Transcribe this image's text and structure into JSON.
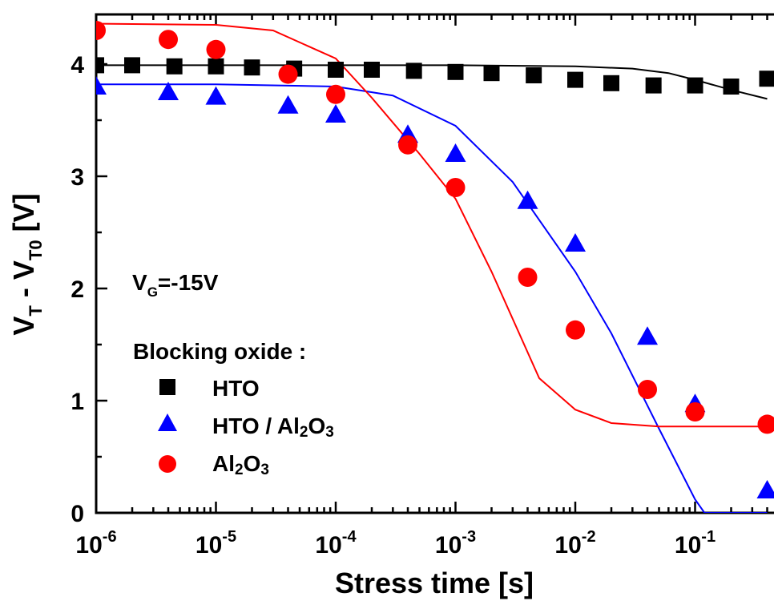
{
  "chart_data": {
    "type": "scatter",
    "x_scale": "log",
    "xlim": [
      1e-06,
      0.4
    ],
    "ylim": [
      0,
      4.4
    ],
    "xlabel": "Stress time [s]",
    "ylabel": {
      "main1": "V",
      "sub1": "T",
      "mid": " - V",
      "sub2": "T0",
      "unit": " [V]"
    },
    "x_ticks": [
      {
        "base": "10",
        "exp": "-6",
        "value": 1e-06
      },
      {
        "base": "10",
        "exp": "-5",
        "value": 1e-05
      },
      {
        "base": "10",
        "exp": "-4",
        "value": 0.0001
      },
      {
        "base": "10",
        "exp": "-3",
        "value": 0.001
      },
      {
        "base": "10",
        "exp": "-2",
        "value": 0.01
      },
      {
        "base": "10",
        "exp": "-1",
        "value": 0.1
      }
    ],
    "y_ticks": [
      "0",
      "1",
      "2",
      "3",
      "4"
    ],
    "annotation": {
      "main": "V",
      "sub": "G",
      "rest": "=-15V"
    },
    "legend_title": "Blocking oxide :",
    "grid": false,
    "series": [
      {
        "name": "HTO",
        "marker": "square",
        "color": "#000000",
        "x": [
          1e-06,
          2e-06,
          4.5e-06,
          1e-05,
          2e-05,
          4.5e-05,
          0.0001,
          0.0002,
          0.00045,
          0.001,
          0.002,
          0.0045,
          0.01,
          0.02,
          0.045,
          0.1,
          0.2,
          0.4
        ],
        "y": [
          3.99,
          3.99,
          3.98,
          3.98,
          3.97,
          3.96,
          3.95,
          3.95,
          3.94,
          3.93,
          3.92,
          3.9,
          3.86,
          3.83,
          3.81,
          3.81,
          3.8,
          3.87
        ]
      },
      {
        "name": "HTO / Al2O3",
        "marker": "triangle",
        "color": "#0000ff",
        "x": [
          1e-06,
          4e-06,
          1e-05,
          4e-05,
          0.0001,
          0.0004,
          0.001,
          0.004,
          0.01,
          0.04,
          0.1,
          0.4
        ],
        "y": [
          3.8,
          3.75,
          3.71,
          3.63,
          3.55,
          3.37,
          3.2,
          2.78,
          2.4,
          1.57,
          0.97,
          0.2
        ]
      },
      {
        "name": "Al2O3",
        "marker": "circle",
        "color": "#ff0000",
        "x": [
          1e-06,
          4e-06,
          1e-05,
          4e-05,
          0.0001,
          0.0004,
          0.001,
          0.004,
          0.01,
          0.04,
          0.1,
          0.4
        ],
        "y": [
          4.3,
          4.22,
          4.13,
          3.91,
          3.73,
          3.28,
          2.9,
          2.1,
          1.63,
          1.1,
          0.9,
          0.79
        ]
      }
    ],
    "fits": [
      {
        "name": "HTO",
        "color": "#000000",
        "x": [
          1e-06,
          1e-05,
          0.0001,
          0.001,
          0.01,
          0.03,
          0.06,
          0.1,
          0.2,
          0.4
        ],
        "y": [
          3.99,
          3.99,
          3.99,
          3.99,
          3.98,
          3.96,
          3.92,
          3.86,
          3.77,
          3.69
        ]
      },
      {
        "name": "HTO / Al2O3",
        "color": "#0000ff",
        "x": [
          1e-06,
          1e-05,
          0.0001,
          0.0003,
          0.001,
          0.003,
          0.01,
          0.02,
          0.05,
          0.1,
          0.12,
          0.4
        ],
        "y": [
          3.82,
          3.82,
          3.8,
          3.72,
          3.45,
          2.95,
          2.15,
          1.6,
          0.75,
          0.12,
          0.0,
          0.0
        ]
      },
      {
        "name": "Al2O3",
        "color": "#ff0000",
        "x": [
          1e-06,
          1e-05,
          3e-05,
          0.0001,
          0.0002,
          0.0005,
          0.001,
          0.002,
          0.005,
          0.01,
          0.02,
          0.05,
          0.1,
          0.4
        ],
        "y": [
          4.36,
          4.35,
          4.3,
          4.05,
          3.7,
          3.2,
          2.8,
          2.15,
          1.2,
          0.92,
          0.8,
          0.77,
          0.77,
          0.77
        ]
      }
    ],
    "legend": [
      {
        "label": "HTO",
        "marker": "square",
        "color": "#000000"
      },
      {
        "label_main": "HTO / Al",
        "sub1": "2",
        "mid": "O",
        "sub2": "3",
        "marker": "triangle",
        "color": "#0000ff"
      },
      {
        "label_main": "Al",
        "sub1": "2",
        "mid": "O",
        "sub2": "3",
        "marker": "circle",
        "color": "#ff0000"
      }
    ]
  }
}
